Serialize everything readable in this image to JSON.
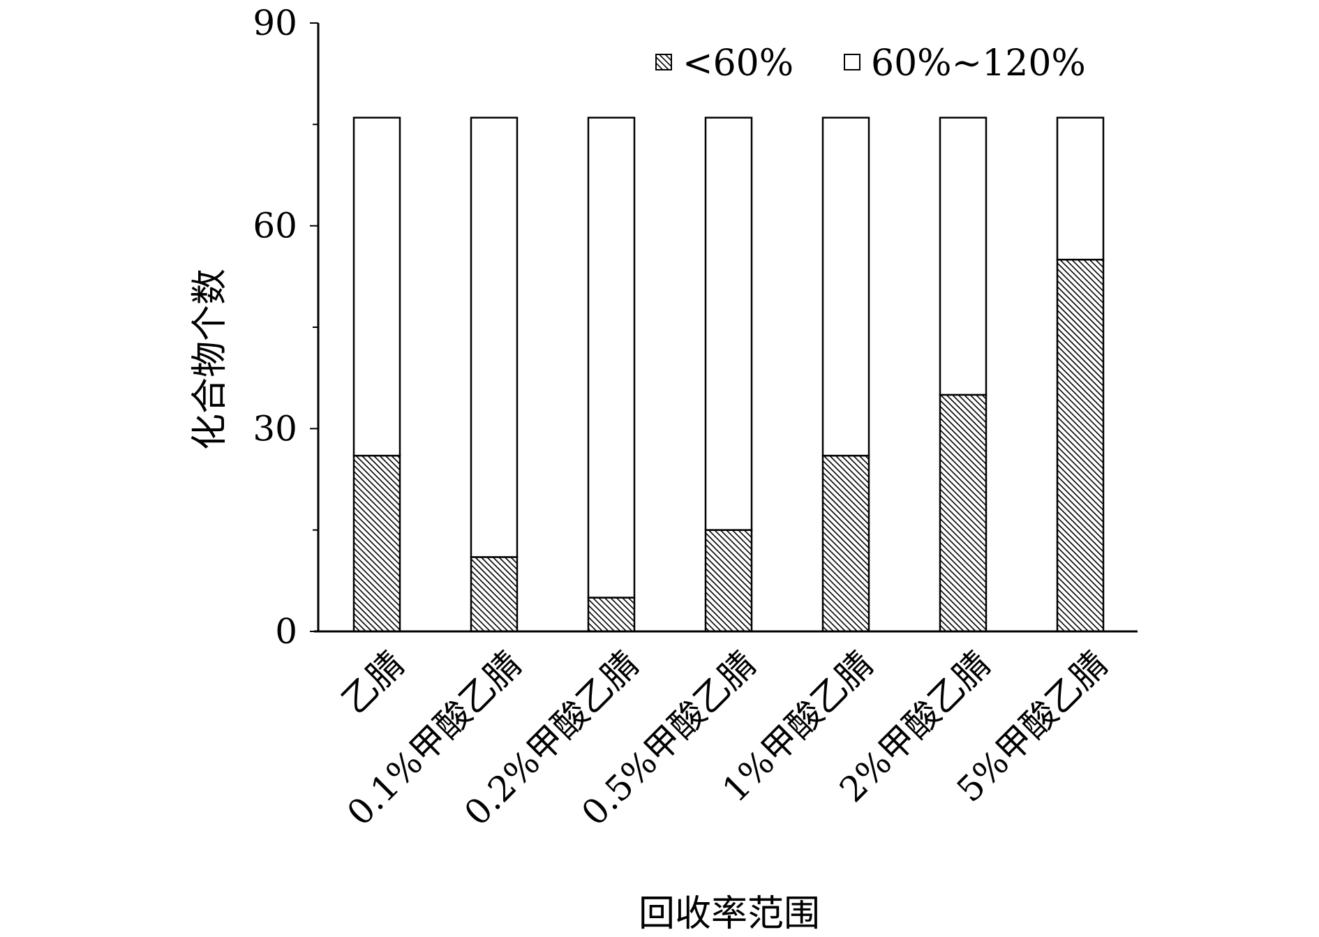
{
  "chart_data": {
    "type": "bar",
    "stacked": true,
    "categories": [
      "乙腈",
      "0.1%甲酸乙腈",
      "0.2%甲酸乙腈",
      "0.5%甲酸乙腈",
      "1%甲酸乙腈",
      "2%甲酸乙腈",
      "5%甲酸乙腈"
    ],
    "series": [
      {
        "name": "<60%",
        "values": [
          26,
          11,
          5,
          15,
          26,
          35,
          55
        ],
        "pattern": "hatch"
      },
      {
        "name": "60%~120%",
        "values": [
          50,
          65,
          71,
          61,
          50,
          41,
          21
        ],
        "pattern": "solid"
      }
    ],
    "xlabel": "回收率范围",
    "ylabel": "化合物个数",
    "ylim": [
      0,
      90
    ],
    "yticks": [
      0,
      30,
      60,
      90
    ],
    "grid": false,
    "legend_position": "top-right",
    "colors": {
      "stroke": "#000000",
      "fill": "#ffffff",
      "hatch": "#000000"
    }
  }
}
